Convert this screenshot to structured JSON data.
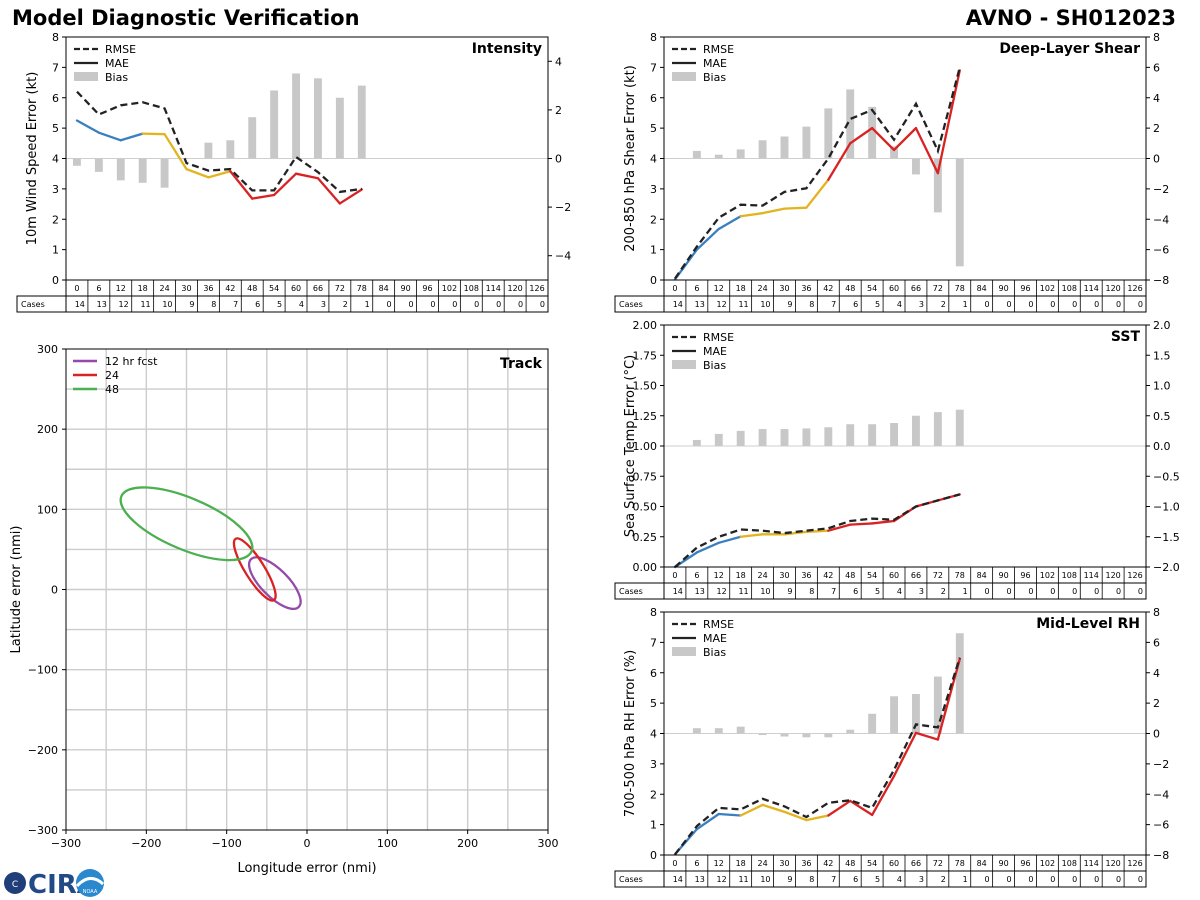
{
  "header": {
    "title_left": "Model Diagnostic Verification",
    "title_right": "AVNO - SH012023"
  },
  "logo": {
    "text": "CIRA",
    "seal": "NOAA"
  },
  "legend": {
    "rmse": "RMSE",
    "mae": "MAE",
    "bias": "Bias"
  },
  "colors": {
    "early": "#3a7fc0",
    "mid": "#e2b420",
    "late": "#d92323",
    "rmse": "#222222",
    "bias": "#c8c8c8",
    "track12": "#9549a8",
    "track24": "#d92323",
    "track48": "#4caf50"
  },
  "table": {
    "cases_label": "Cases",
    "hours": [
      "0",
      "6",
      "12",
      "18",
      "24",
      "30",
      "36",
      "42",
      "48",
      "54",
      "60",
      "66",
      "72",
      "78",
      "84",
      "90",
      "96",
      "102",
      "108",
      "114",
      "120",
      "126"
    ],
    "cases": [
      "14",
      "13",
      "12",
      "11",
      "10",
      "9",
      "8",
      "7",
      "6",
      "5",
      "4",
      "3",
      "2",
      "1",
      "0",
      "0",
      "0",
      "0",
      "0",
      "0",
      "0",
      "0"
    ]
  },
  "chart_data": [
    {
      "type": "line",
      "title": "Intensity",
      "ylabel": "10m Wind Speed Error (kt)",
      "ylim": [
        0,
        8
      ],
      "yticks": [
        "0",
        "1",
        "2",
        "3",
        "4",
        "5",
        "6",
        "7",
        "8"
      ],
      "y2lim": [
        -5,
        5
      ],
      "y2ticks": [
        "−4",
        "−2",
        "0",
        "2",
        "4"
      ],
      "x": [
        0,
        6,
        12,
        18,
        24,
        30,
        36,
        42,
        48,
        54,
        60,
        66,
        72,
        78
      ],
      "rmse": [
        6.2,
        5.45,
        5.75,
        5.85,
        5.65,
        3.85,
        3.6,
        3.65,
        2.95,
        2.95,
        4.05,
        3.55,
        2.9,
        3.0
      ],
      "mae": [
        5.25,
        4.85,
        4.6,
        4.82,
        4.8,
        3.65,
        3.38,
        3.58,
        2.68,
        2.8,
        3.5,
        3.35,
        2.52,
        2.98
      ],
      "bias": [
        -0.3,
        -0.55,
        -0.9,
        -1.0,
        -1.2,
        0,
        0.65,
        0.75,
        1.7,
        2.8,
        3.5,
        3.3,
        2.5,
        3.0
      ]
    },
    {
      "type": "line",
      "title": "Deep-Layer Shear",
      "ylabel": "200-850 hPa Shear Error (kt)",
      "ylim": [
        0,
        8
      ],
      "yticks": [
        "0",
        "1",
        "2",
        "3",
        "4",
        "5",
        "6",
        "7",
        "8"
      ],
      "y2lim": [
        -8,
        8
      ],
      "y2ticks": [
        "−8",
        "−6",
        "−4",
        "−2",
        "0",
        "2",
        "4",
        "6",
        "8"
      ],
      "x": [
        0,
        6,
        12,
        18,
        24,
        30,
        36,
        42,
        48,
        54,
        60,
        66,
        72,
        78
      ],
      "rmse": [
        0.05,
        1.1,
        2.05,
        2.48,
        2.45,
        2.9,
        3.02,
        4.0,
        5.3,
        5.6,
        4.62,
        5.8,
        4.25,
        7.0
      ],
      "mae": [
        0.02,
        1.0,
        1.68,
        2.1,
        2.2,
        2.35,
        2.38,
        3.3,
        4.5,
        5.0,
        4.28,
        5.0,
        3.52,
        6.9
      ],
      "bias": [
        0,
        0.5,
        0.25,
        0.6,
        1.2,
        1.45,
        2.1,
        3.3,
        4.55,
        3.4,
        0.8,
        -1.05,
        -3.55,
        -7.1
      ]
    },
    {
      "type": "line",
      "title": "SST",
      "ylabel": "Sea Surface Temp Error (°C)",
      "ylim": [
        0,
        2
      ],
      "yticks": [
        "0.00",
        "0.25",
        "0.50",
        "0.75",
        "1.00",
        "1.25",
        "1.50",
        "1.75",
        "2.00"
      ],
      "y2lim": [
        -2,
        2
      ],
      "y2ticks": [
        "−2.0",
        "−1.5",
        "−1.0",
        "−0.5",
        "0.0",
        "0.5",
        "1.0",
        "1.5",
        "2.0"
      ],
      "x": [
        0,
        6,
        12,
        18,
        24,
        30,
        36,
        42,
        48,
        54,
        60,
        66,
        72,
        78
      ],
      "rmse": [
        0.0,
        0.16,
        0.25,
        0.31,
        0.3,
        0.28,
        0.3,
        0.32,
        0.38,
        0.4,
        0.39,
        0.5,
        0.55,
        0.6
      ],
      "mae": [
        0.0,
        0.12,
        0.2,
        0.25,
        0.27,
        0.27,
        0.29,
        0.3,
        0.35,
        0.36,
        0.38,
        0.5,
        0.55,
        0.6
      ],
      "bias": [
        0,
        0.1,
        0.2,
        0.25,
        0.28,
        0.28,
        0.29,
        0.31,
        0.36,
        0.36,
        0.38,
        0.5,
        0.56,
        0.6
      ]
    },
    {
      "type": "line",
      "title": "Mid-Level RH",
      "ylabel": "700-500 hPa RH Error (%)",
      "ylim": [
        0,
        8
      ],
      "yticks": [
        "0",
        "1",
        "2",
        "3",
        "4",
        "5",
        "6",
        "7",
        "8"
      ],
      "y2lim": [
        -8,
        8
      ],
      "y2ticks": [
        "−8",
        "−6",
        "−4",
        "−2",
        "0",
        "2",
        "4",
        "6",
        "8"
      ],
      "x": [
        0,
        6,
        12,
        18,
        24,
        30,
        36,
        42,
        48,
        54,
        60,
        66,
        72,
        78
      ],
      "rmse": [
        0.02,
        0.95,
        1.55,
        1.5,
        1.85,
        1.6,
        1.25,
        1.72,
        1.8,
        1.55,
        2.8,
        4.3,
        4.2,
        6.5
      ],
      "mae": [
        0.02,
        0.85,
        1.35,
        1.3,
        1.65,
        1.42,
        1.15,
        1.3,
        1.78,
        1.32,
        2.6,
        4.02,
        3.8,
        6.45
      ],
      "bias": [
        0,
        0.35,
        0.35,
        0.45,
        -0.1,
        -0.2,
        -0.25,
        -0.25,
        0.25,
        1.3,
        2.45,
        2.6,
        3.75,
        6.6
      ]
    },
    {
      "type": "scatter",
      "title": "Track",
      "xlabel": "Longitude error (nmi)",
      "ylabel": "Latitude error (nmi)",
      "xlim": [
        -300,
        300
      ],
      "ylim": [
        -300,
        300
      ],
      "xticks": [
        "−300",
        "−200",
        "−100",
        "0",
        "100",
        "200",
        "300"
      ],
      "yticks": [
        "−300",
        "−200",
        "−100",
        "0",
        "100",
        "200",
        "300"
      ],
      "legend": [
        "12 hr fcst",
        "24",
        "48"
      ],
      "ellipses": [
        {
          "name": "12 hr fcst",
          "cx": -40,
          "cy": 8,
          "rx": 42,
          "ry": 17,
          "angle_deg": -45
        },
        {
          "name": "24",
          "cx": -65,
          "cy": 25,
          "rx": 45,
          "ry": 12,
          "angle_deg": -58
        },
        {
          "name": "48",
          "cx": -150,
          "cy": 82,
          "rx": 88,
          "ry": 32,
          "angle_deg": -23
        }
      ]
    }
  ]
}
